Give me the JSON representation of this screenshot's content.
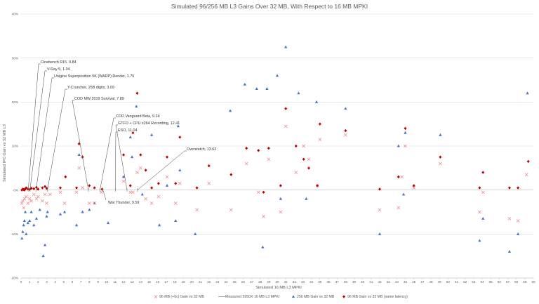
{
  "chart_data": {
    "type": "scatter",
    "title": "Simulated 96/256 MB L3 Gains Over 32 MB, With Respect to 16 MB MPKI",
    "xlabel": "Simulated 16 MB L3 MPKI",
    "ylabel": "Simulated IPC Gain vs 32 MB L3",
    "xlim": [
      0,
      60
    ],
    "ylim": [
      -20,
      40
    ],
    "x_ticks": [
      "0",
      "1",
      "2",
      "3",
      "4",
      "5",
      "6",
      "7",
      "8",
      "9",
      "10",
      "11",
      "12",
      "13",
      "14",
      "15",
      "16",
      "17",
      "18",
      "19",
      "20",
      "21",
      "22",
      "23",
      "24",
      "25",
      "26",
      "27",
      "28",
      "29",
      "30",
      "31",
      "32",
      "33",
      "34",
      "35",
      "36",
      "37",
      "38",
      "39",
      "40",
      "41",
      "42",
      "43",
      "44",
      "45",
      "46",
      "47",
      "48",
      "49",
      "50",
      "51",
      "52",
      "53",
      "54",
      "55",
      "56",
      "57",
      "58",
      "59",
      "60"
    ],
    "y_ticks": [
      "-20%",
      "-10%",
      "0%",
      "10%",
      "20%",
      "30%",
      "40%"
    ],
    "y_tick_values": [
      -20,
      -10,
      0,
      10,
      20,
      30,
      40
    ],
    "grid": true,
    "legend_position": "bottom",
    "colors": {
      "x_marker": "#f08080",
      "measured": "#9e9e9e",
      "triangle": "#4472c4",
      "diamond": "#c00000"
    },
    "series": [
      {
        "name": "96 MB (+6c) Gain vs 32 MB",
        "marker": "x",
        "x": [
          0.1,
          0.2,
          0.3,
          0.4,
          0.6,
          0.8,
          1.0,
          1.2,
          1.5,
          1.8,
          2.0,
          2.5,
          2.8,
          3.0,
          3.4,
          4.6,
          5.1,
          6.5,
          6.8,
          7.2,
          8.0,
          8.6,
          9.4,
          12.0,
          12.8,
          13.1,
          13.6,
          14.0,
          14.6,
          15.3,
          16.1,
          17.1,
          18.1,
          18.6,
          20.6,
          22.0,
          24.6,
          26.4,
          27.8,
          28.4,
          29.0,
          30.4,
          31.0,
          32.2,
          33.1,
          33.7,
          34.7,
          35.0,
          38.0,
          42.0,
          44.2,
          44.6,
          45.0,
          46.0,
          49.1,
          53.7,
          54.1,
          57.2,
          58.2,
          59.2
        ],
        "y": [
          -3.0,
          -2.5,
          -4.0,
          -2.0,
          -1.5,
          -3.0,
          -2.0,
          -2.5,
          -1.0,
          -2.0,
          -1.5,
          -2.5,
          -1.0,
          -3.0,
          -1.0,
          -0.5,
          -3.0,
          -0.5,
          5.0,
          0.5,
          -3.0,
          -3.0,
          -0.5,
          2.0,
          -0.5,
          -0.5,
          4.0,
          5.0,
          -2.0,
          -3.0,
          -1.5,
          3.0,
          -3.0,
          1.5,
          -4.5,
          1.5,
          -4.5,
          6.0,
          -0.5,
          -6.0,
          7.0,
          -5.0,
          14.5,
          4.0,
          10.0,
          7.0,
          1.0,
          11.5,
          12.5,
          -4.5,
          -4.0,
          3.0,
          10.0,
          0.5,
          6.0,
          -5.0,
          -0.5,
          -6.5,
          -7.0,
          3.5
        ]
      },
      {
        "name": "Measured 5950X 16 MB L3 MPKI",
        "marker": "line",
        "x": [],
        "y": []
      },
      {
        "name": "256 MB Gain vs 32 MB",
        "marker": "triangle",
        "x": [
          0.1,
          0.2,
          0.3,
          0.4,
          0.5,
          0.6,
          0.8,
          1.0,
          1.2,
          1.5,
          1.8,
          2.2,
          2.6,
          2.8,
          3.0,
          3.1,
          4.6,
          5.1,
          6.5,
          6.8,
          7.2,
          8.0,
          8.6,
          10.2,
          12.0,
          12.8,
          13.0,
          13.5,
          14.2,
          15.3,
          16.2,
          17.1,
          18.1,
          18.4,
          18.6,
          20.4,
          24.5,
          26.2,
          27.6,
          28.3,
          28.8,
          30.0,
          30.4,
          31.0,
          32.5,
          33.4,
          34.6,
          38.0,
          42.0,
          44.2,
          44.8,
          45.0,
          49.1,
          53.7,
          54.1,
          57.2,
          58.2,
          59.3
        ],
        "y": [
          -11.0,
          -9.5,
          -8.0,
          -7.0,
          -5.0,
          -10.0,
          -7.5,
          -7.0,
          -5.0,
          -8.0,
          -6.5,
          -4.5,
          -15.0,
          -12.5,
          -6.0,
          -5.0,
          -5.5,
          -5.0,
          -8.0,
          8.0,
          -5.0,
          -4.5,
          -3.0,
          -7.5,
          3.0,
          12.0,
          7.5,
          19.0,
          -1.0,
          12.5,
          -8.0,
          1.0,
          -7.0,
          14.5,
          4.5,
          -10.0,
          18.0,
          24.0,
          23.0,
          -13.0,
          23.0,
          26.0,
          -2.0,
          32.5,
          22.0,
          -2.0,
          20.0,
          18.5,
          -10.0,
          10.0,
          -1.0,
          13.0,
          12.5,
          -11.5,
          -6.5,
          -14.0,
          -10.0,
          22.0
        ]
      },
      {
        "name": "96 MB Gain vs 32 MB (same latency)",
        "marker": "diamond",
        "x": [
          0.1,
          0.2,
          0.3,
          0.4,
          0.5,
          0.6,
          0.8,
          1.0,
          1.2,
          1.5,
          1.8,
          2.0,
          2.5,
          2.8,
          3.0,
          4.6,
          5.2,
          6.5,
          6.8,
          7.2,
          8.0,
          8.6,
          9.5,
          12.0,
          12.8,
          13.1,
          13.6,
          14.0,
          14.6,
          15.3,
          16.1,
          17.1,
          18.1,
          18.6,
          20.6,
          22.0,
          24.6,
          26.4,
          27.8,
          28.4,
          29.0,
          30.4,
          31.0,
          32.2,
          33.1,
          33.7,
          34.7,
          35.0,
          38.0,
          42.0,
          44.2,
          45.0,
          46.0,
          49.1,
          53.7,
          54.1,
          57.2,
          58.2,
          59.4
        ],
        "y": [
          0.0,
          0.2,
          0.1,
          0.0,
          0.3,
          0.5,
          0.2,
          0.1,
          0.4,
          0.3,
          0.6,
          0.2,
          0.5,
          0.8,
          0.4,
          0.5,
          3.0,
          0.5,
          10.5,
          7.5,
          1.0,
          0.5,
          0.2,
          8.0,
          1.0,
          13.0,
          22.0,
          8.0,
          4.5,
          0.5,
          1.5,
          7.5,
          1.5,
          12.0,
          0.5,
          5.5,
          3.5,
          9.5,
          9.0,
          -0.5,
          9.5,
          1.0,
          18.5,
          10.0,
          7.0,
          5.0,
          1.0,
          15.0,
          13.5,
          0.2,
          3.0,
          14.0,
          1.0,
          7.5,
          0.5,
          4.0,
          0.5,
          0.5,
          6.5
        ]
      }
    ],
    "annotations": [
      {
        "text": "Cinebench R15, 0.84",
        "x": 0.84,
        "y": 0
      },
      {
        "text": "V-Ray 5, 1.04",
        "x": 1.04,
        "y": 0
      },
      {
        "text": "Unigine Superposition 5K (WARP) Render, 1.75",
        "x": 1.75,
        "y": 0
      },
      {
        "text": "Y-Cruncher, 25B digits, 3.09",
        "x": 3.09,
        "y": 0
      },
      {
        "text": "COD MW 2019 Survival, 7.89",
        "x": 7.89,
        "y": 0
      },
      {
        "text": "COD Vanguard Beta, 9.24",
        "x": 9.24,
        "y": 0
      },
      {
        "text": "GTFO + CPU x264 Recording, 12.41",
        "x": 12.41,
        "y": 0
      },
      {
        "text": "ESO, 11.04",
        "x": 11.04,
        "y": 0
      },
      {
        "text": "Overwatch, 13.62",
        "x": 13.62,
        "y": 0
      },
      {
        "text": "War Thunder, 9.59",
        "x": 9.59,
        "y": 0
      }
    ]
  }
}
